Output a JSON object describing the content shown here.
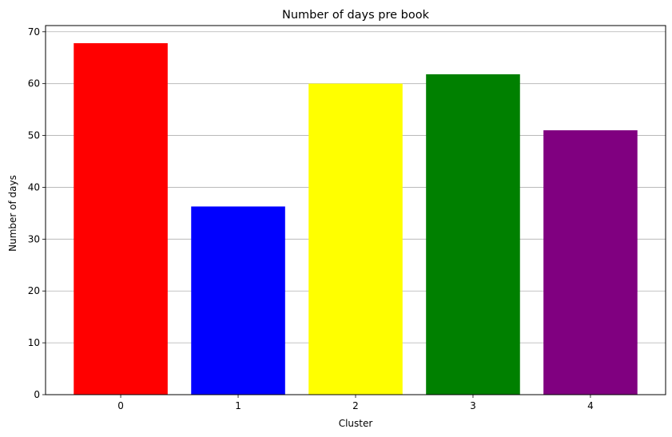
{
  "chart_data": {
    "type": "bar",
    "title": "Number of days pre book",
    "xlabel": "Cluster",
    "ylabel": "Number of days",
    "categories": [
      "0",
      "1",
      "2",
      "3",
      "4"
    ],
    "values": [
      67.8,
      36.3,
      60.0,
      61.8,
      51.0
    ],
    "colors": [
      "#ff0000",
      "#0000ff",
      "#ffff00",
      "#008000",
      "#800080"
    ],
    "ylim": [
      0,
      71.2
    ],
    "yticks": [
      0,
      10,
      20,
      30,
      40,
      50,
      60,
      70
    ],
    "grid": "y",
    "legend": "none"
  }
}
